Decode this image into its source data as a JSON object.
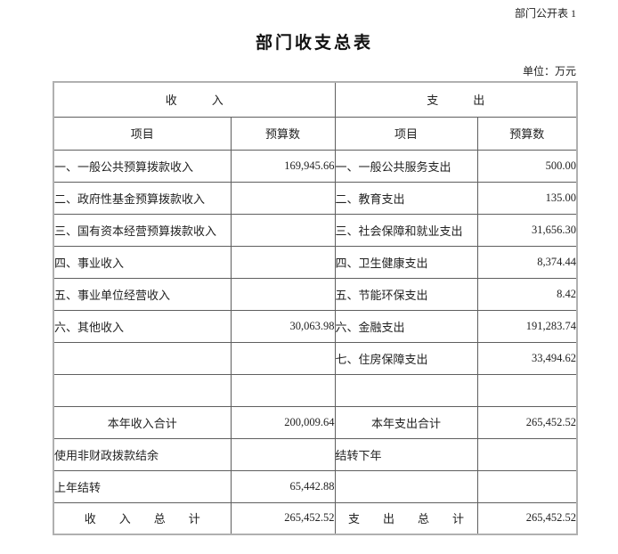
{
  "page": {
    "doc_label": "部门公开表 1",
    "title": "部门收支总表",
    "unit_note": "单位：万元"
  },
  "table": {
    "income_section": "收　　　入",
    "expense_section": "支　　　出",
    "item_header": "项目",
    "budget_header": "预算数",
    "rows": [
      {
        "left_item": "一、一般公共预算拨款收入",
        "left_value": "169,945.66",
        "left_align": "left",
        "right_item": "一、一般公共服务支出",
        "right_value": "500.00",
        "right_align": "left"
      },
      {
        "left_item": "二、政府性基金预算拨款收入",
        "left_value": "",
        "left_align": "left",
        "right_item": "二、教育支出",
        "right_value": "135.00",
        "right_align": "left"
      },
      {
        "left_item": "三、国有资本经营预算拨款收入",
        "left_value": "",
        "left_align": "left",
        "right_item": "三、社会保障和就业支出",
        "right_value": "31,656.30",
        "right_align": "left"
      },
      {
        "left_item": "四、事业收入",
        "left_value": "",
        "left_align": "left",
        "right_item": "四、卫生健康支出",
        "right_value": "8,374.44",
        "right_align": "left"
      },
      {
        "left_item": "五、事业单位经营收入",
        "left_value": "",
        "left_align": "left",
        "right_item": "五、节能环保支出",
        "right_value": "8.42",
        "right_align": "left"
      },
      {
        "left_item": "六、其他收入",
        "left_value": "30,063.98",
        "left_align": "left",
        "right_item": "六、金融支出",
        "right_value": "191,283.74",
        "right_align": "left"
      },
      {
        "left_item": "",
        "left_value": "",
        "left_align": "left",
        "right_item": "七、住房保障支出",
        "right_value": "33,494.62",
        "right_align": "left"
      },
      {
        "left_item": "",
        "left_value": "",
        "left_align": "left",
        "right_item": "",
        "right_value": "",
        "right_align": "left"
      },
      {
        "left_item": "本年收入合计",
        "left_value": "200,009.64",
        "left_align": "center",
        "right_item": "本年支出合计",
        "right_value": "265,452.52",
        "right_align": "center"
      },
      {
        "left_item": "使用非财政拨款结余",
        "left_value": "",
        "left_align": "left",
        "right_item": "结转下年",
        "right_value": "",
        "right_align": "left"
      },
      {
        "left_item": "上年结转",
        "left_value": "65,442.88",
        "left_align": "left",
        "right_item": "",
        "right_value": "",
        "right_align": "left"
      },
      {
        "left_item": "收　　入　　总　　计",
        "left_value": "265,452.52",
        "left_align": "center",
        "right_item": "支　　出　　总　　计",
        "right_value": "265,452.52",
        "right_align": "center"
      }
    ]
  }
}
